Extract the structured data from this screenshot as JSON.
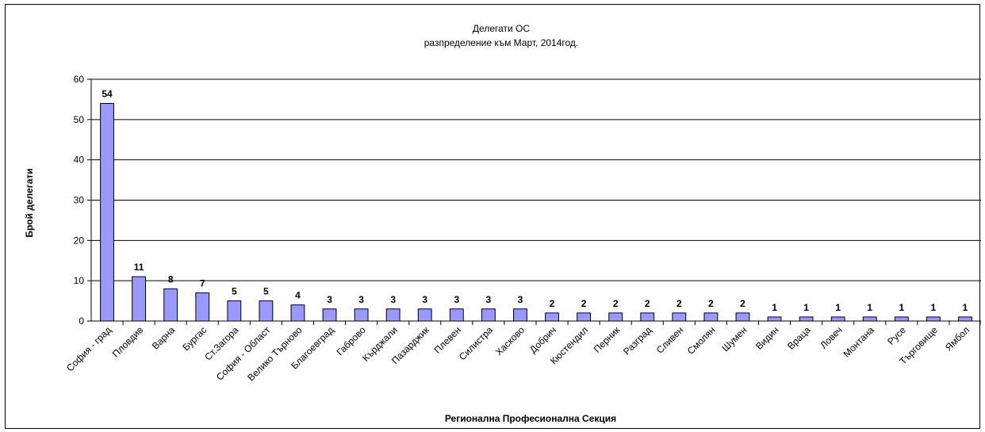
{
  "chart_data": {
    "type": "bar",
    "title": "Делегати ОС",
    "subtitle": "разпределение към Март, 2014год.",
    "xlabel": "Регионална Професионална Секция",
    "ylabel": "Брой делегати",
    "ylim": [
      0,
      60
    ],
    "yticks": [
      0,
      10,
      20,
      30,
      40,
      50,
      60
    ],
    "grid": true,
    "legend": "none",
    "bar_color": "#9999ff",
    "categories": [
      "София - град",
      "Пловдив",
      "Варна",
      "Бургас",
      "Ст.Загора",
      "София - Област",
      "Велико Търново",
      "Благоевград",
      "Габрово",
      "Кърджали",
      "Пазарджик",
      "Плевен",
      "Силистра",
      "Хасково",
      "Добрич",
      "Кюстендил",
      "Перник",
      "Разград",
      "Сливен",
      "Смолян",
      "Шумен",
      "Видин",
      "Враца",
      "Ловеч",
      "Монтана",
      "Русе",
      "Търговище",
      "Ямбол"
    ],
    "values": [
      54,
      11,
      8,
      7,
      5,
      5,
      4,
      3,
      3,
      3,
      3,
      3,
      3,
      3,
      2,
      2,
      2,
      2,
      2,
      2,
      2,
      1,
      1,
      1,
      1,
      1,
      1,
      1
    ]
  }
}
